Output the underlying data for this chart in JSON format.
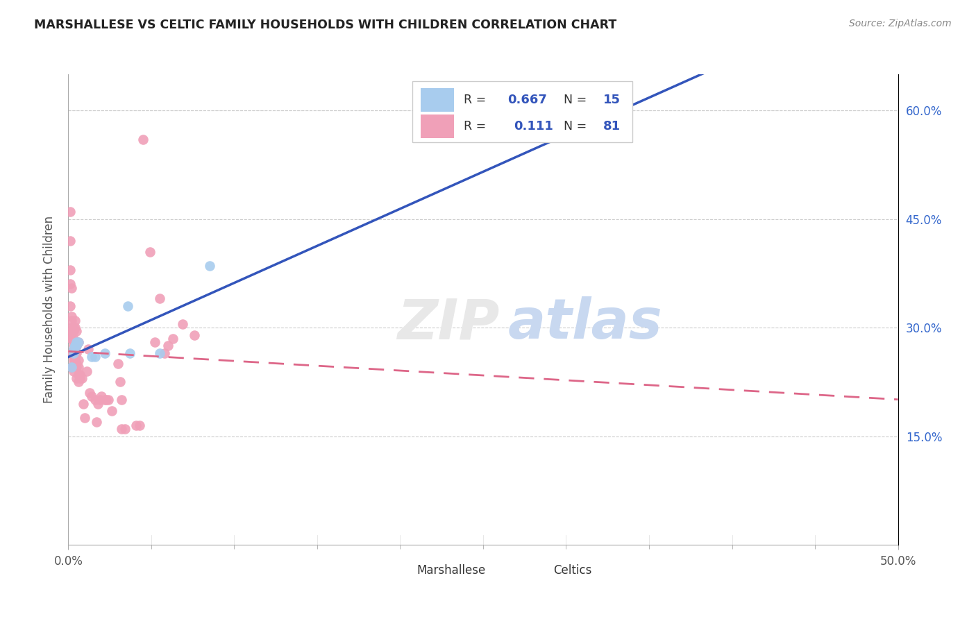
{
  "title": "MARSHALLESE VS CELTIC FAMILY HOUSEHOLDS WITH CHILDREN CORRELATION CHART",
  "source": "Source: ZipAtlas.com",
  "ylabel": "Family Households with Children",
  "xlim": [
    0.0,
    0.5
  ],
  "ylim": [
    0.0,
    0.65
  ],
  "x_tick_major": [
    0.0,
    0.5
  ],
  "x_tick_minor": [
    0.05,
    0.1,
    0.15,
    0.2,
    0.25,
    0.3,
    0.35,
    0.4,
    0.45
  ],
  "x_tick_label_left": "0.0%",
  "x_tick_label_right": "50.0%",
  "y_ticks": [
    0.15,
    0.3,
    0.45,
    0.6
  ],
  "y_tick_labels_right": [
    "15.0%",
    "30.0%",
    "45.0%",
    "60.0%"
  ],
  "grid_color": "#cccccc",
  "watermark": "ZIPatlas",
  "legend_R1": "0.667",
  "legend_N1": "15",
  "legend_R2": "0.111",
  "legend_N2": "81",
  "blue_color": "#A8CCEE",
  "pink_color": "#F0A0B8",
  "blue_line_color": "#3355BB",
  "pink_line_color": "#DD6688",
  "marshallese_x": [
    0.002,
    0.003,
    0.003,
    0.004,
    0.004,
    0.005,
    0.005,
    0.006,
    0.014,
    0.016,
    0.022,
    0.036,
    0.037,
    0.055,
    0.085
  ],
  "marshallese_y": [
    0.245,
    0.265,
    0.27,
    0.275,
    0.275,
    0.275,
    0.28,
    0.28,
    0.26,
    0.26,
    0.265,
    0.33,
    0.265,
    0.265,
    0.385
  ],
  "celtics_x": [
    0.001,
    0.001,
    0.001,
    0.001,
    0.001,
    0.001,
    0.002,
    0.002,
    0.002,
    0.002,
    0.002,
    0.002,
    0.002,
    0.002,
    0.002,
    0.002,
    0.003,
    0.003,
    0.003,
    0.003,
    0.003,
    0.003,
    0.003,
    0.003,
    0.003,
    0.003,
    0.003,
    0.003,
    0.003,
    0.004,
    0.004,
    0.004,
    0.004,
    0.004,
    0.004,
    0.004,
    0.005,
    0.005,
    0.005,
    0.005,
    0.005,
    0.005,
    0.006,
    0.006,
    0.006,
    0.006,
    0.006,
    0.007,
    0.007,
    0.008,
    0.009,
    0.01,
    0.011,
    0.012,
    0.013,
    0.014,
    0.016,
    0.017,
    0.018,
    0.019,
    0.02,
    0.022,
    0.023,
    0.024,
    0.026,
    0.03,
    0.031,
    0.032,
    0.032,
    0.034,
    0.041,
    0.043,
    0.045,
    0.049,
    0.052,
    0.055,
    0.058,
    0.06,
    0.063,
    0.069,
    0.076
  ],
  "celtics_y": [
    0.46,
    0.38,
    0.42,
    0.36,
    0.29,
    0.33,
    0.355,
    0.315,
    0.3,
    0.265,
    0.285,
    0.245,
    0.285,
    0.31,
    0.295,
    0.265,
    0.26,
    0.28,
    0.3,
    0.295,
    0.285,
    0.265,
    0.275,
    0.255,
    0.27,
    0.265,
    0.25,
    0.27,
    0.24,
    0.255,
    0.265,
    0.3,
    0.31,
    0.28,
    0.26,
    0.27,
    0.295,
    0.25,
    0.245,
    0.23,
    0.265,
    0.275,
    0.28,
    0.245,
    0.255,
    0.225,
    0.235,
    0.23,
    0.235,
    0.23,
    0.195,
    0.175,
    0.24,
    0.27,
    0.21,
    0.205,
    0.2,
    0.17,
    0.195,
    0.2,
    0.205,
    0.2,
    0.2,
    0.2,
    0.185,
    0.25,
    0.225,
    0.2,
    0.16,
    0.16,
    0.165,
    0.165,
    0.56,
    0.405,
    0.28,
    0.34,
    0.265,
    0.275,
    0.285,
    0.305,
    0.29
  ]
}
